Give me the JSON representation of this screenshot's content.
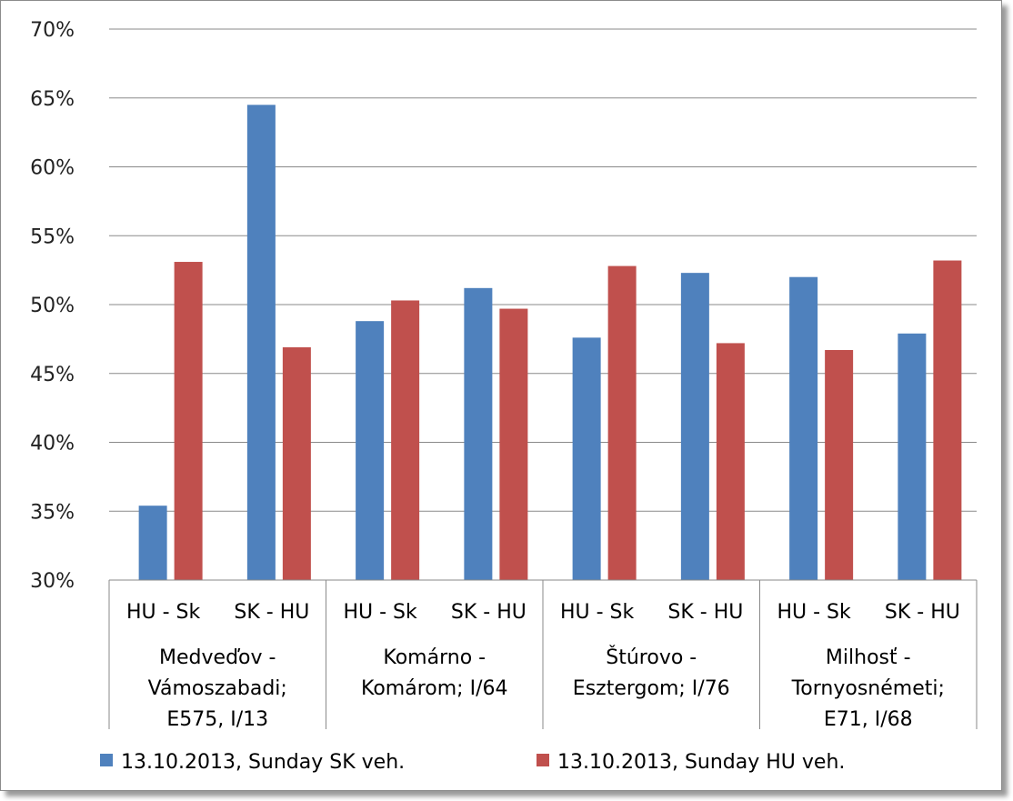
{
  "chart_data": {
    "type": "bar",
    "ylim": [
      30,
      70
    ],
    "ytick_step": 5,
    "ytick_suffix": "%",
    "grid": true,
    "legend_position": "bottom",
    "subcategories": [
      "HU - Sk",
      "SK - HU",
      "HU - Sk",
      "SK - HU",
      "HU - Sk",
      "SK - HU",
      "HU - Sk",
      "SK - HU"
    ],
    "groups": [
      {
        "lines": [
          "Medveďov -",
          "Vámoszabadi;",
          "E575, I/13"
        ]
      },
      {
        "lines": [
          "Komárno -",
          "Komárom; I/64"
        ]
      },
      {
        "lines": [
          "Štúrovo -",
          "Esztergom; I/76"
        ]
      },
      {
        "lines": [
          "Milhosť -",
          "Tornyosnémeti;",
          "E71, I/68"
        ]
      }
    ],
    "series": [
      {
        "name": "13.10.2013, Sunday SK veh.",
        "color": "#4f81bd",
        "values": [
          35.4,
          64.5,
          48.8,
          51.2,
          47.6,
          52.3,
          52.0,
          47.9
        ]
      },
      {
        "name": "13.10.2013, Sunday HU veh.",
        "color": "#c0504d",
        "values": [
          53.1,
          46.9,
          50.3,
          49.7,
          52.8,
          47.2,
          46.7,
          53.2
        ]
      }
    ]
  }
}
